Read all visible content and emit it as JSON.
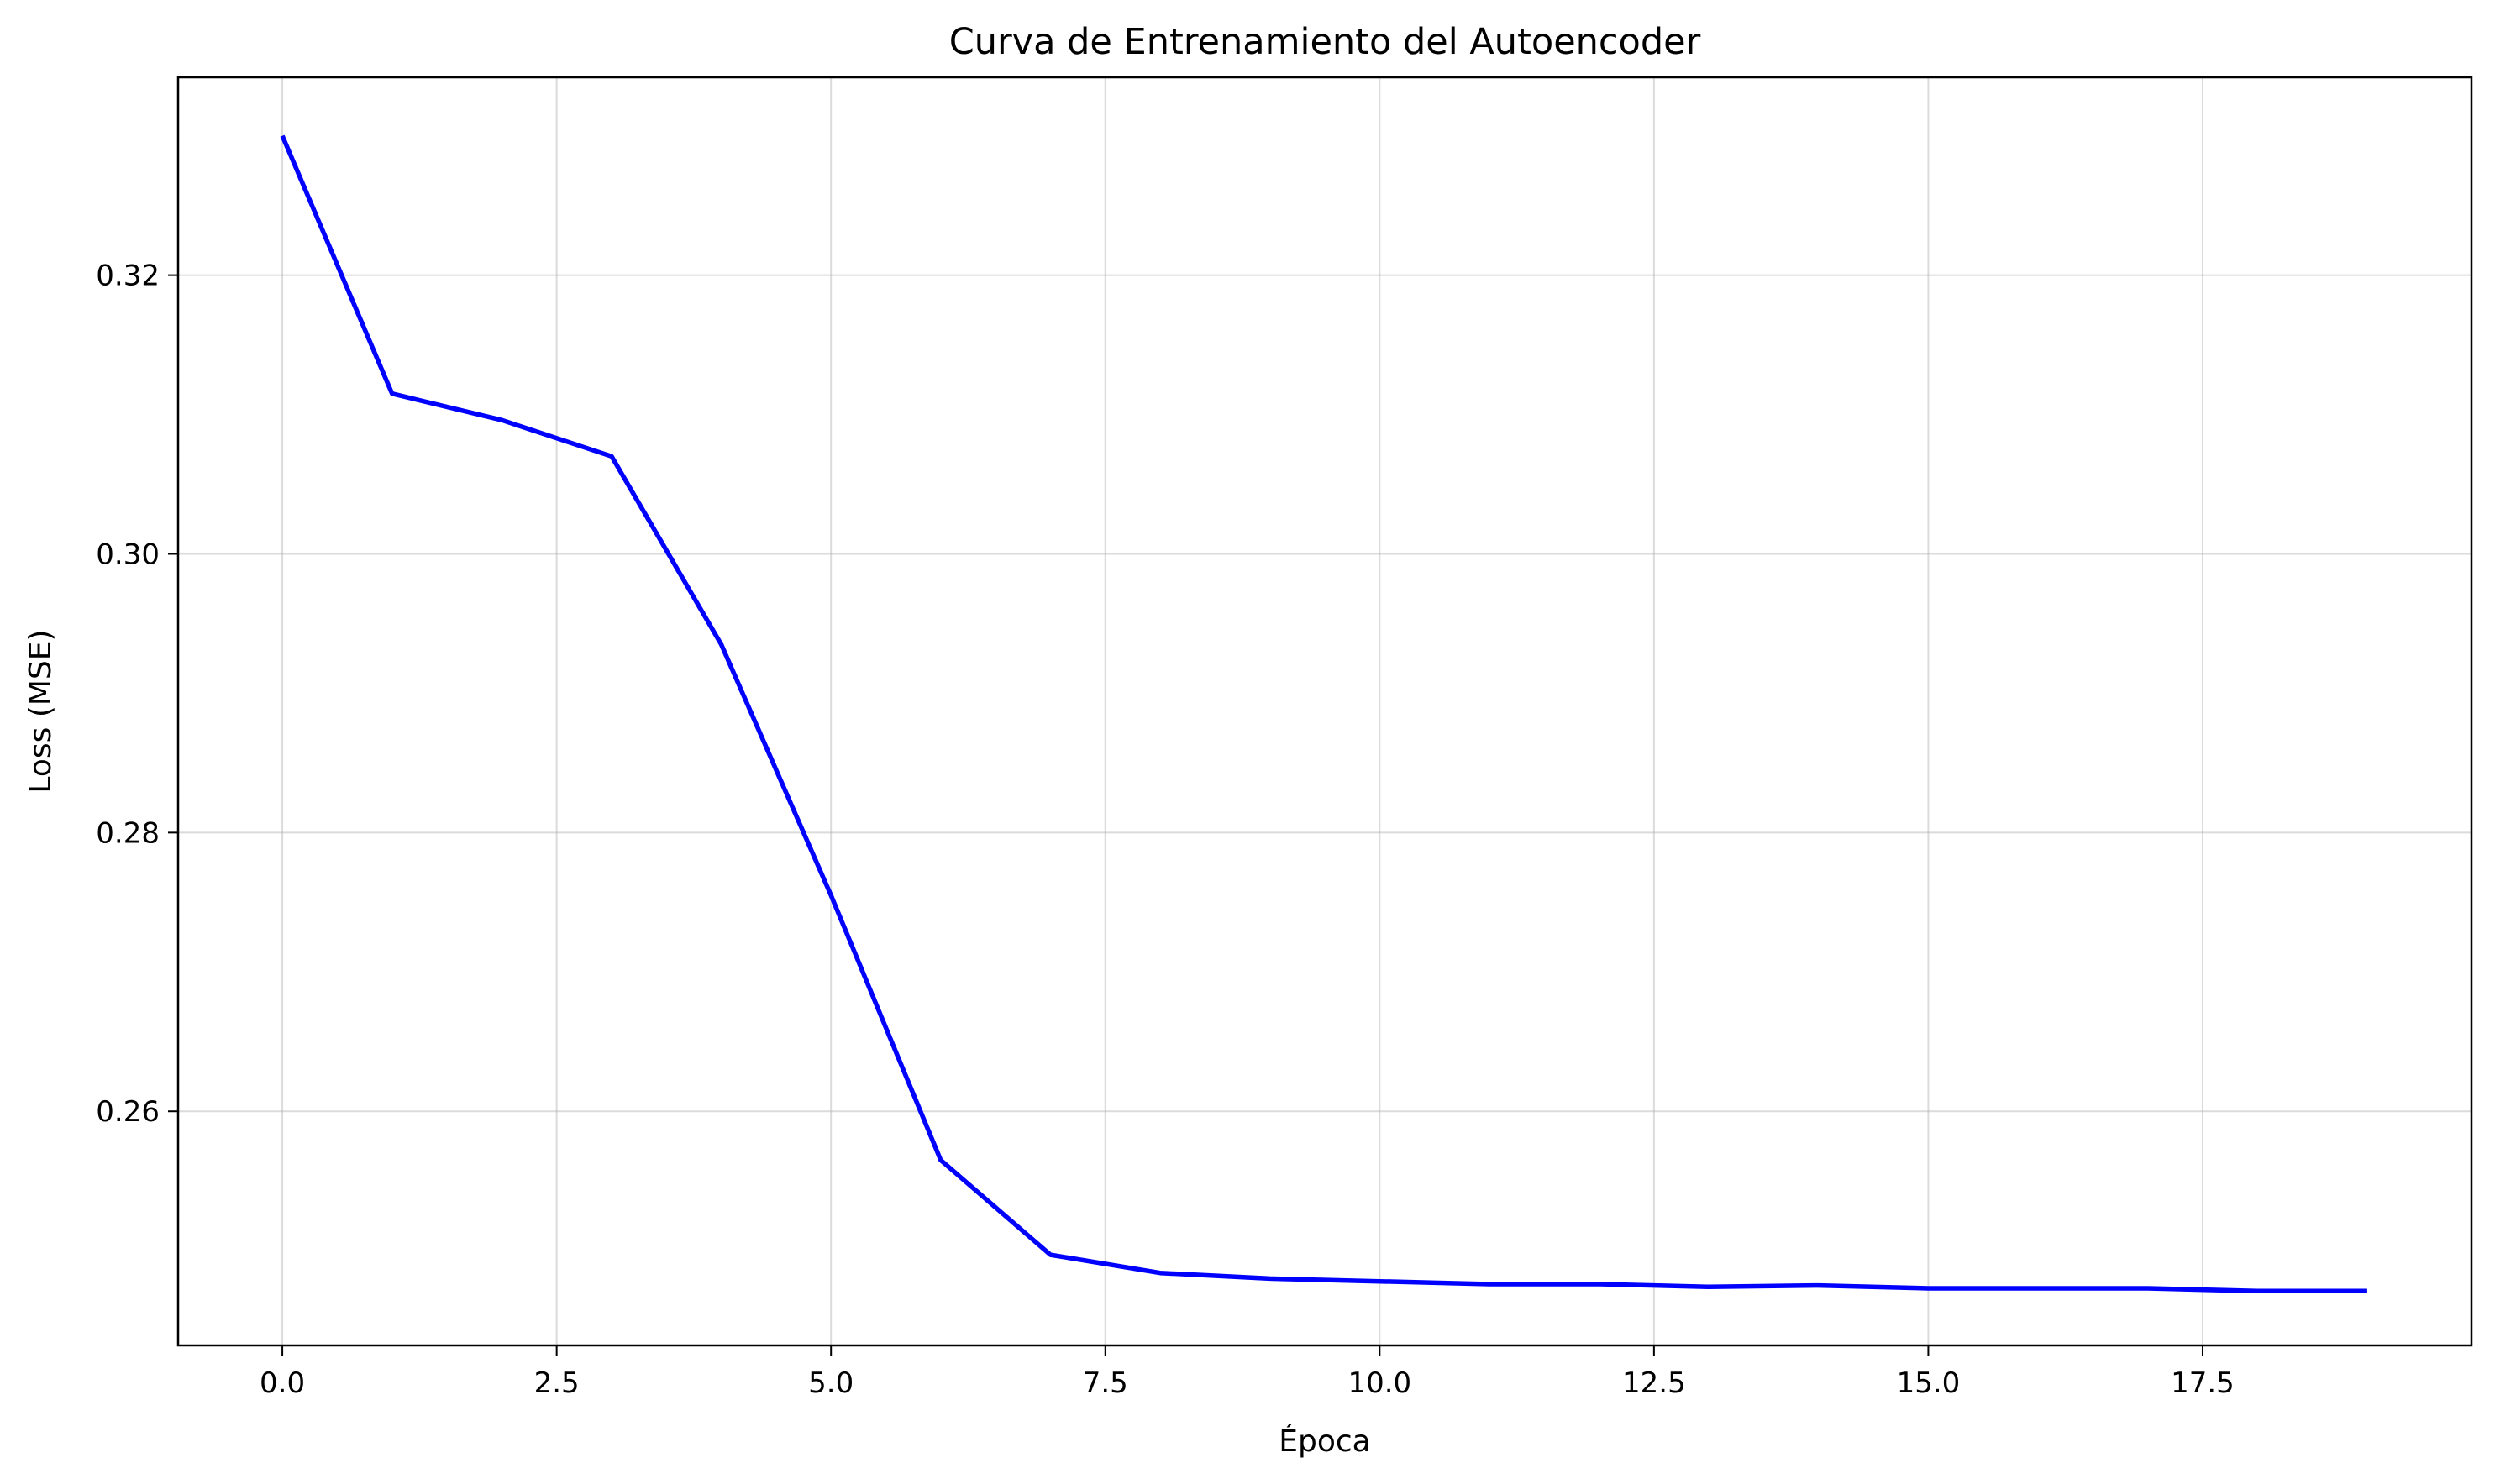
{
  "chart_data": {
    "type": "line",
    "title": "Curva de Entrenamiento del Autoencoder",
    "xlabel": "Época",
    "ylabel": "Loss (MSE)",
    "xlim": [
      -0.95,
      19.95
    ],
    "ylim": [
      0.2432,
      0.3342
    ],
    "x_ticks": [
      0.0,
      2.5,
      5.0,
      7.5,
      10.0,
      12.5,
      15.0,
      17.5
    ],
    "x_tick_labels": [
      "0.0",
      "2.5",
      "5.0",
      "7.5",
      "10.0",
      "12.5",
      "15.0",
      "17.5"
    ],
    "y_ticks": [
      0.26,
      0.28,
      0.3,
      0.32
    ],
    "y_tick_labels": [
      "0.26",
      "0.28",
      "0.30",
      "0.32"
    ],
    "grid": true,
    "colors": {
      "line": "#0000ff"
    },
    "series": [
      {
        "x": [
          0,
          1,
          2,
          3,
          4,
          5,
          6,
          7,
          8,
          9,
          10,
          11,
          12,
          13,
          14,
          15,
          16,
          17,
          18,
          19
        ],
        "values": [
          0.33,
          0.3115,
          0.3096,
          0.307,
          0.2935,
          0.2755,
          0.2565,
          0.2497,
          0.2484,
          0.248,
          0.2478,
          0.2476,
          0.2476,
          0.2474,
          0.2475,
          0.2473,
          0.2473,
          0.2473,
          0.2471,
          0.2471
        ]
      }
    ]
  }
}
